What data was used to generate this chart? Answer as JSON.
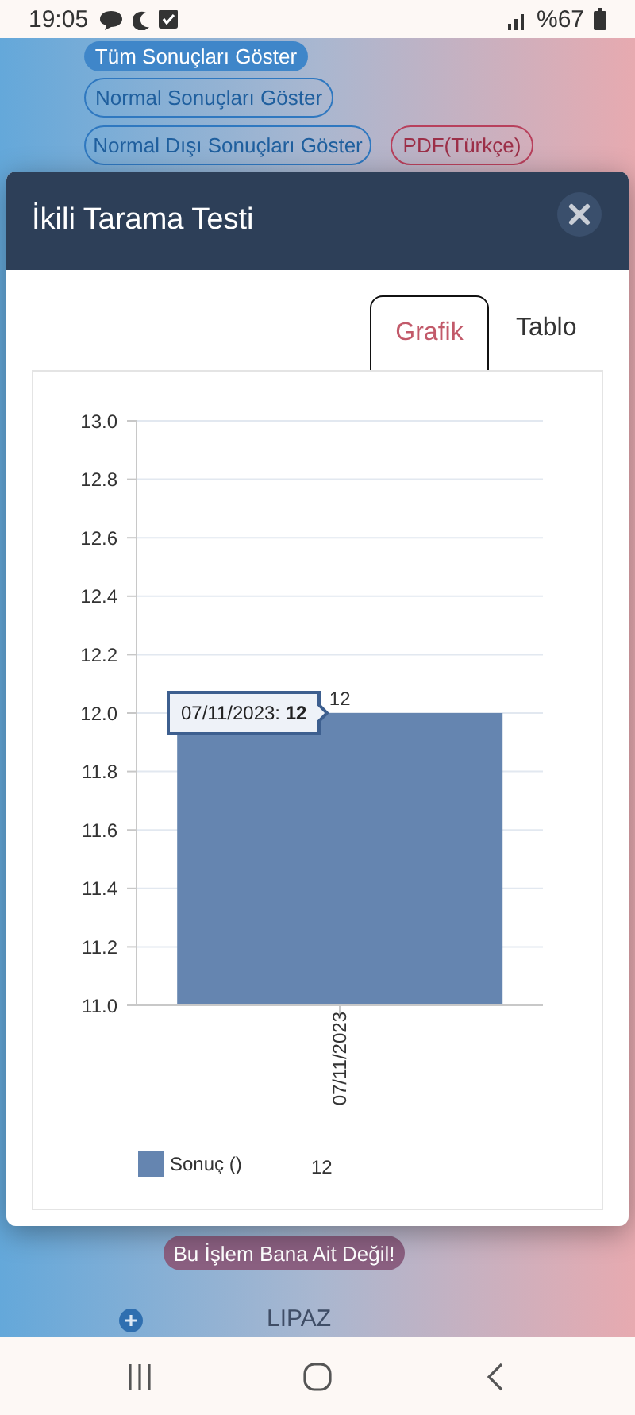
{
  "chart_data": {
    "type": "bar",
    "title": "İkili Tarama Testi",
    "categories": [
      "07/11/2023"
    ],
    "series": [
      {
        "name": "Sonuç ()",
        "color": "#6585b0",
        "values": [
          12
        ]
      }
    ],
    "ylim": [
      11,
      13
    ],
    "yticks": [
      {
        "value": 11,
        "label": "11.0"
      },
      11.2,
      11.4,
      11.6,
      11.8,
      {
        "value": 12,
        "label": "12.0"
      },
      12.2,
      12.4,
      12.6,
      12.8,
      {
        "value": 13,
        "label": "13.0"
      }
    ],
    "grid": "y",
    "legend": "bottom",
    "data_labels": true,
    "annotations": [
      "19:05",
      "%67",
      "Tüm Sonuçları Göster",
      "Normal Sonuçları Göster",
      "Normal Dışı Sonuçları Göster",
      "PDF(Türkçe)",
      "Grafik",
      "Tablo",
      {
        "text": "07/11/2023: 12",
        "x": "07/11/2023",
        "y": 12
      },
      "12",
      "Bu İşlem Bana Ait Değil!",
      "LIPAZ"
    ]
  }
}
